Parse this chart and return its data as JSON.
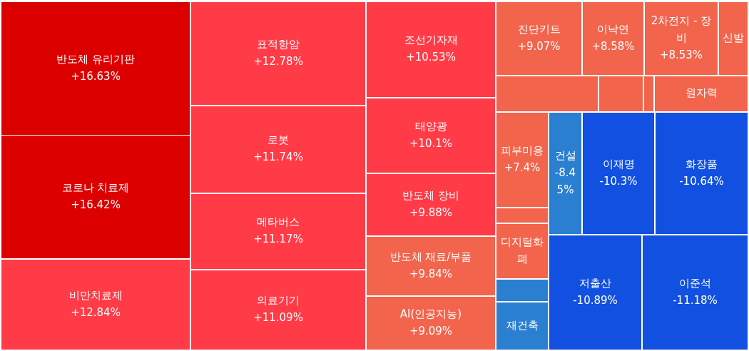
{
  "chart_data": {
    "type": "other",
    "categories": [
      "반도체 유리기판",
      "코로나 치료제",
      "비만치료제",
      "표적항암",
      "로봇",
      "메타버스",
      "의료기기",
      "조선기자재",
      "태양광",
      "반도체 장비",
      "반도체 재료/부품",
      "AI(인공지능)",
      "진단키트",
      "이낙연",
      "2차전지 - 장비",
      "신발",
      null,
      null,
      null,
      "원자력",
      "피부미용",
      "건설",
      "이재명",
      "화장품",
      null,
      "디지털화폐",
      null,
      "재건축",
      "저출산",
      "이준석"
    ],
    "values": [
      16.63,
      16.42,
      12.84,
      12.78,
      11.74,
      11.17,
      11.09,
      10.53,
      10.1,
      9.88,
      9.84,
      9.09,
      9.07,
      8.58,
      8.53,
      null,
      null,
      null,
      null,
      null,
      7.4,
      -8.45,
      -10.3,
      -10.64,
      null,
      null,
      null,
      null,
      -10.89,
      -11.18
    ],
    "value_labels": [
      "+16.63%",
      "+16.42%",
      "+12.84%",
      "+12.78%",
      "+11.74%",
      "+11.17%",
      "+11.09%",
      "+10.53%",
      "+10.1%",
      "+9.88%",
      "+9.84%",
      "+9.09%",
      "+9.07%",
      "+8.58%",
      "+8.53%",
      null,
      null,
      null,
      null,
      null,
      "+7.4%",
      "-8.45%",
      "-10.3%",
      "-10.64%",
      null,
      null,
      null,
      null,
      "-10.89%",
      "-11.18%"
    ],
    "colors": [
      "#dd0000",
      "#dd0000",
      "#ff3b47",
      "#ff3b47",
      "#ff3b47",
      "#ff3b47",
      "#ff3b47",
      "#ff3b47",
      "#ff3b47",
      "#ff3b47",
      "#f2644c",
      "#f2644c",
      "#f2644c",
      "#f2644c",
      "#f2644c",
      "#f2644c",
      "#f2644c",
      "#f2644c",
      "#f2644c",
      "#f2644c",
      "#f2644c",
      "#2a7fd0",
      "#1150e0",
      "#1150e0",
      "#f2644c",
      "#f2644c",
      "#2a7fd0",
      "#2a7fd0",
      "#1150e0",
      "#1150e0"
    ]
  }
}
